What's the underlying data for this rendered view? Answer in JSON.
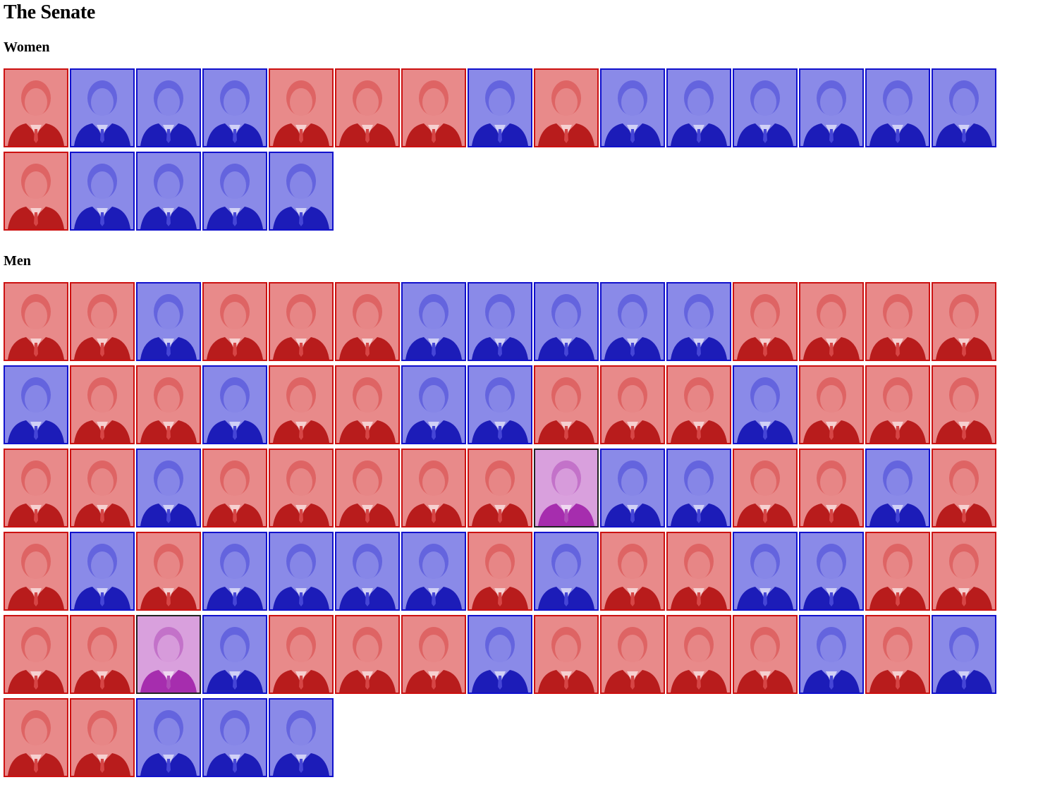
{
  "page_title": "The Senate",
  "colors": {
    "republican": "#cc1111",
    "democrat": "#1111cc",
    "independent": "#222222",
    "independent_tint": "#a020a8"
  },
  "women": {
    "heading": "Women",
    "senators": [
      {
        "party": "R"
      },
      {
        "party": "D"
      },
      {
        "party": "D"
      },
      {
        "party": "D"
      },
      {
        "party": "R"
      },
      {
        "party": "R"
      },
      {
        "party": "R"
      },
      {
        "party": "D"
      },
      {
        "party": "R"
      },
      {
        "party": "D"
      },
      {
        "party": "D"
      },
      {
        "party": "D"
      },
      {
        "party": "D"
      },
      {
        "party": "D"
      },
      {
        "party": "D"
      },
      {
        "party": "R"
      },
      {
        "party": "D"
      },
      {
        "party": "D"
      },
      {
        "party": "D"
      },
      {
        "party": "D"
      }
    ]
  },
  "men": {
    "heading": "Men",
    "senators": [
      {
        "party": "R"
      },
      {
        "party": "R"
      },
      {
        "party": "D"
      },
      {
        "party": "R"
      },
      {
        "party": "R"
      },
      {
        "party": "R"
      },
      {
        "party": "D"
      },
      {
        "party": "D"
      },
      {
        "party": "D"
      },
      {
        "party": "D"
      },
      {
        "party": "D"
      },
      {
        "party": "R"
      },
      {
        "party": "R"
      },
      {
        "party": "R"
      },
      {
        "party": "R"
      },
      {
        "party": "D"
      },
      {
        "party": "R"
      },
      {
        "party": "R"
      },
      {
        "party": "D"
      },
      {
        "party": "R"
      },
      {
        "party": "R"
      },
      {
        "party": "D"
      },
      {
        "party": "D"
      },
      {
        "party": "R"
      },
      {
        "party": "R"
      },
      {
        "party": "R"
      },
      {
        "party": "D"
      },
      {
        "party": "R"
      },
      {
        "party": "R"
      },
      {
        "party": "R"
      },
      {
        "party": "R"
      },
      {
        "party": "R"
      },
      {
        "party": "D"
      },
      {
        "party": "R"
      },
      {
        "party": "R"
      },
      {
        "party": "R"
      },
      {
        "party": "R"
      },
      {
        "party": "R"
      },
      {
        "party": "I"
      },
      {
        "party": "D"
      },
      {
        "party": "D"
      },
      {
        "party": "R"
      },
      {
        "party": "R"
      },
      {
        "party": "D"
      },
      {
        "party": "R"
      },
      {
        "party": "R"
      },
      {
        "party": "D"
      },
      {
        "party": "R"
      },
      {
        "party": "D"
      },
      {
        "party": "D"
      },
      {
        "party": "D"
      },
      {
        "party": "D"
      },
      {
        "party": "R"
      },
      {
        "party": "D"
      },
      {
        "party": "R"
      },
      {
        "party": "R"
      },
      {
        "party": "D"
      },
      {
        "party": "D"
      },
      {
        "party": "R"
      },
      {
        "party": "R"
      },
      {
        "party": "R"
      },
      {
        "party": "R"
      },
      {
        "party": "I"
      },
      {
        "party": "D"
      },
      {
        "party": "R"
      },
      {
        "party": "R"
      },
      {
        "party": "R"
      },
      {
        "party": "D"
      },
      {
        "party": "R"
      },
      {
        "party": "R"
      },
      {
        "party": "R"
      },
      {
        "party": "R"
      },
      {
        "party": "D"
      },
      {
        "party": "R"
      },
      {
        "party": "D"
      },
      {
        "party": "R"
      },
      {
        "party": "R"
      },
      {
        "party": "D"
      },
      {
        "party": "D"
      },
      {
        "party": "D"
      }
    ]
  }
}
